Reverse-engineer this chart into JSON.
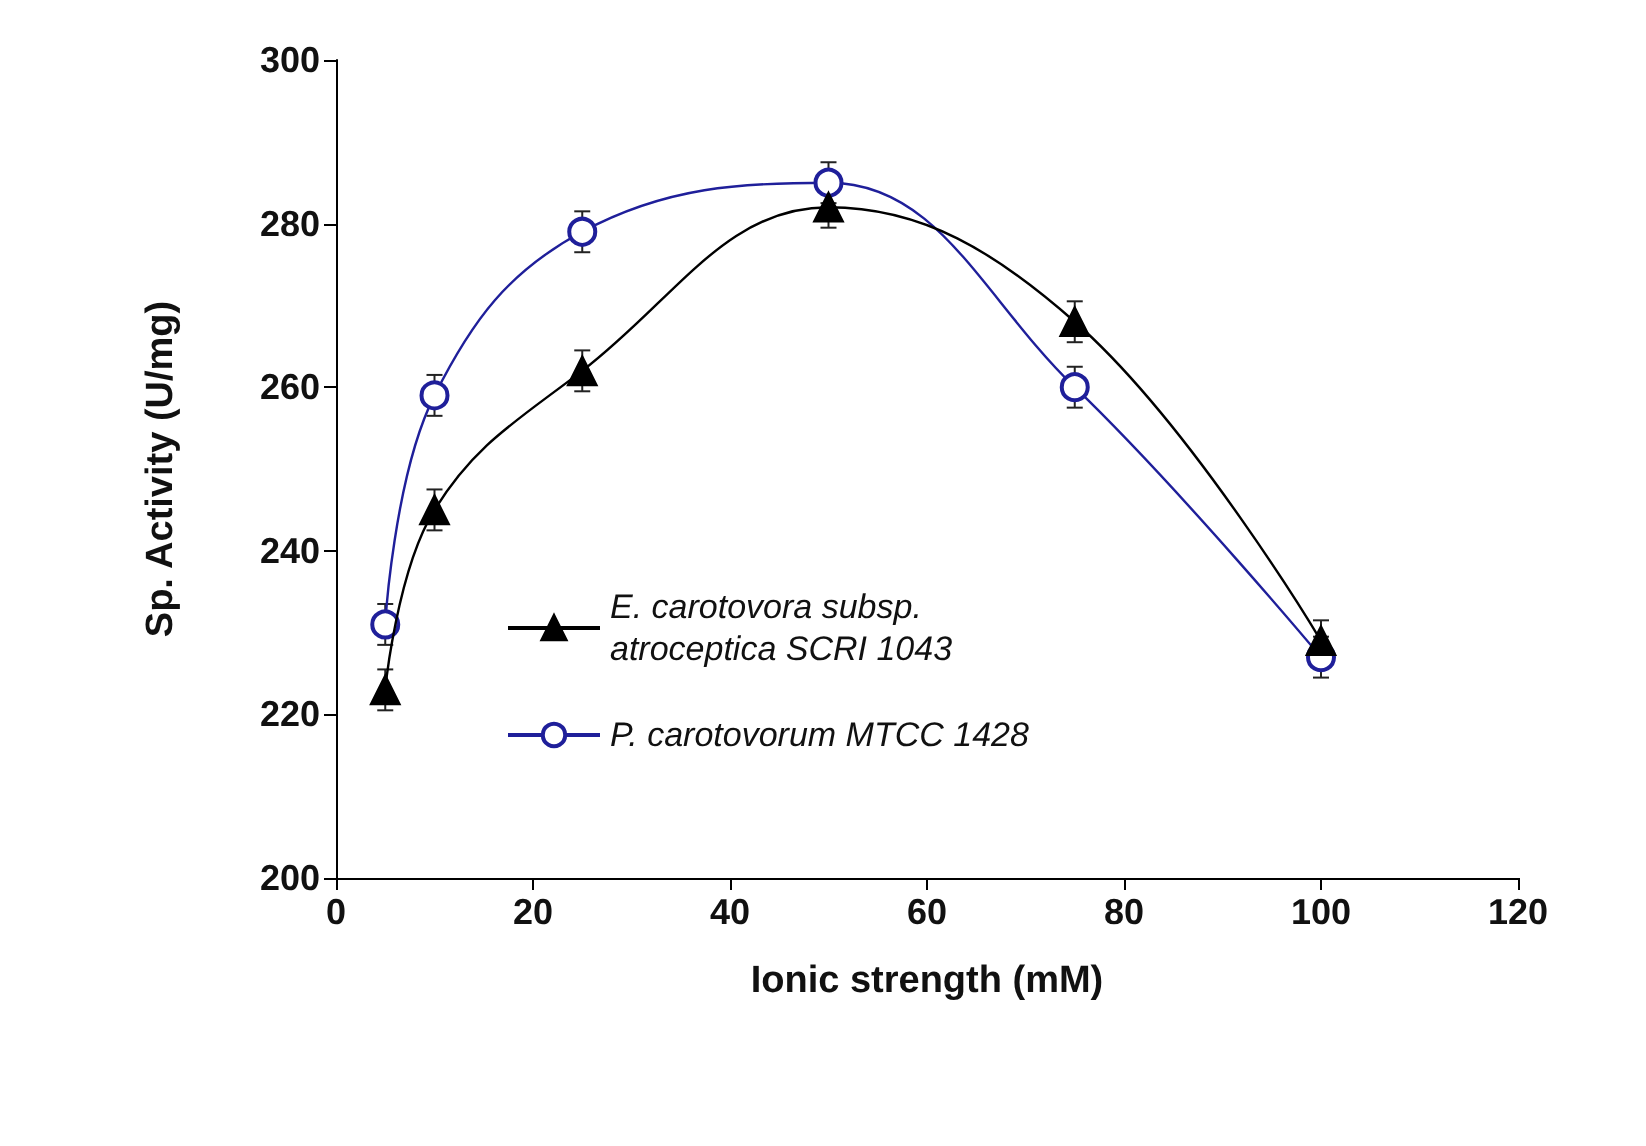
{
  "chart_data": {
    "type": "line",
    "xlabel": "Ionic strength (mM)",
    "ylabel": "Sp. Activity (U/mg)",
    "x": [
      5,
      10,
      25,
      50,
      75,
      100
    ],
    "series": [
      {
        "name": "E. carotovora subsp. atroceptica SCRI 1043",
        "color": "#000000",
        "marker": "triangle",
        "values": [
          223,
          245,
          262,
          282,
          268,
          229
        ],
        "errors": [
          2.5,
          2.5,
          2.5,
          2.5,
          2.5,
          2.5
        ]
      },
      {
        "name": "P. carotovorum MTCC 1428",
        "color": "#1f1f9a",
        "marker": "circle",
        "values": [
          231,
          259,
          279,
          285,
          260,
          227
        ],
        "errors": [
          2.5,
          2.5,
          2.5,
          2.5,
          2.5,
          2.5
        ]
      }
    ],
    "xlim": [
      0,
      120
    ],
    "xticks": [
      0,
      20,
      40,
      60,
      80,
      100,
      120
    ],
    "ylim": [
      200,
      300
    ],
    "yticks": [
      200,
      220,
      240,
      260,
      280,
      300
    ],
    "grid": false,
    "legend": "left"
  }
}
